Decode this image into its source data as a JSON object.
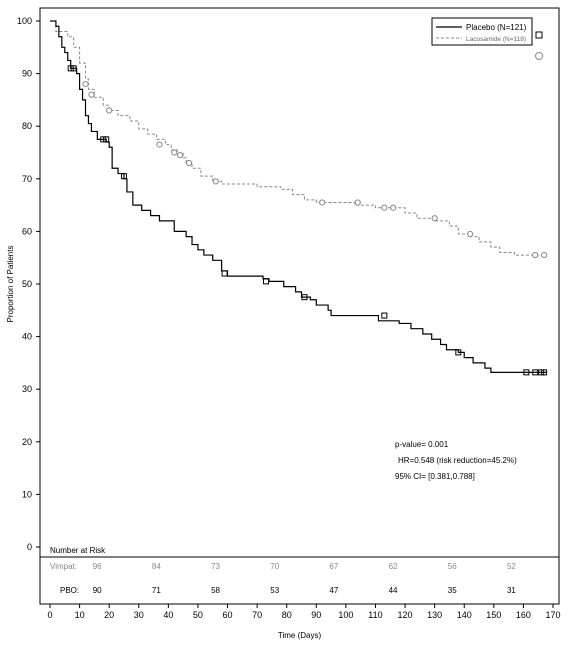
{
  "chart_data": {
    "type": "line",
    "title": "",
    "xlabel": "Time (Days)",
    "ylabel": "Proportion of Patients",
    "xlim": [
      0,
      170
    ],
    "ylim": [
      0,
      100
    ],
    "x_ticks": [
      0,
      10,
      20,
      30,
      40,
      50,
      60,
      70,
      80,
      90,
      100,
      110,
      120,
      130,
      140,
      150,
      160,
      170
    ],
    "y_ticks": [
      0,
      10,
      20,
      30,
      40,
      50,
      60,
      70,
      80,
      90,
      100
    ],
    "legend_position": "top-right",
    "series": [
      {
        "name": "Placebo (N=121)",
        "color": "#000000",
        "dashed": false,
        "censor_marker": "square",
        "steps": [
          [
            0,
            100
          ],
          [
            2,
            99
          ],
          [
            3,
            97
          ],
          [
            4,
            95
          ],
          [
            5,
            94
          ],
          [
            6,
            92.5
          ],
          [
            7,
            91
          ],
          [
            9,
            90
          ],
          [
            10,
            87
          ],
          [
            11,
            85
          ],
          [
            12,
            82
          ],
          [
            13,
            80.5
          ],
          [
            14,
            79
          ],
          [
            16,
            77.5
          ],
          [
            19,
            77
          ],
          [
            20,
            76
          ],
          [
            21,
            72
          ],
          [
            23,
            71
          ],
          [
            25,
            70
          ],
          [
            26,
            67.5
          ],
          [
            28,
            65
          ],
          [
            31,
            64
          ],
          [
            34,
            63
          ],
          [
            37,
            62
          ],
          [
            42,
            60
          ],
          [
            46,
            59
          ],
          [
            48,
            57.5
          ],
          [
            50,
            56.5
          ],
          [
            52,
            55.5
          ],
          [
            55,
            54.5
          ],
          [
            58,
            52.5
          ],
          [
            60,
            51.5
          ],
          [
            72,
            51
          ],
          [
            74,
            50.5
          ],
          [
            79,
            49.5
          ],
          [
            83,
            48.5
          ],
          [
            85,
            47.5
          ],
          [
            88,
            47
          ],
          [
            90,
            46
          ],
          [
            94,
            45
          ],
          [
            95,
            44
          ],
          [
            111,
            43
          ],
          [
            118,
            42.5
          ],
          [
            122,
            41.5
          ],
          [
            126,
            40.5
          ],
          [
            129,
            39.5
          ],
          [
            132,
            38.5
          ],
          [
            134,
            37.5
          ],
          [
            138,
            37
          ],
          [
            140,
            36
          ],
          [
            143,
            35
          ],
          [
            147,
            34
          ],
          [
            149,
            33.2
          ],
          [
            168,
            33.2
          ]
        ],
        "censored": [
          [
            7,
            91
          ],
          [
            8,
            91
          ],
          [
            18,
            77.5
          ],
          [
            19,
            77.5
          ],
          [
            25,
            70.5
          ],
          [
            59,
            52
          ],
          [
            73,
            50.5
          ],
          [
            86,
            47.5
          ],
          [
            113,
            44
          ],
          [
            138,
            37
          ],
          [
            161,
            33.2
          ],
          [
            164,
            33.2
          ],
          [
            166,
            33.2
          ],
          [
            167,
            33.2
          ]
        ]
      },
      {
        "name": "Lacosamide (N=118)",
        "color": "#888888",
        "dashed": true,
        "censor_marker": "circle",
        "steps": [
          [
            0,
            100
          ],
          [
            2,
            98
          ],
          [
            6,
            97
          ],
          [
            8,
            95
          ],
          [
            10,
            92
          ],
          [
            12,
            89
          ],
          [
            13,
            87
          ],
          [
            15,
            85.5
          ],
          [
            18,
            84
          ],
          [
            20,
            83
          ],
          [
            23,
            82
          ],
          [
            27,
            81
          ],
          [
            30,
            79.5
          ],
          [
            33,
            78.5
          ],
          [
            36,
            77.5
          ],
          [
            39,
            76.5
          ],
          [
            41,
            75.5
          ],
          [
            43,
            74.8
          ],
          [
            45,
            74
          ],
          [
            46,
            73
          ],
          [
            48,
            72
          ],
          [
            51,
            70.5
          ],
          [
            55,
            69.5
          ],
          [
            58,
            69
          ],
          [
            70,
            68.5
          ],
          [
            78,
            68
          ],
          [
            82,
            67
          ],
          [
            86,
            66
          ],
          [
            90,
            65.5
          ],
          [
            103,
            65
          ],
          [
            110,
            64.5
          ],
          [
            120,
            63.5
          ],
          [
            124,
            62.5
          ],
          [
            130,
            62
          ],
          [
            135,
            61
          ],
          [
            138,
            59.5
          ],
          [
            142,
            59
          ],
          [
            145,
            58
          ],
          [
            149,
            57
          ],
          [
            152,
            56
          ],
          [
            157,
            55.5
          ],
          [
            167,
            55.5
          ]
        ],
        "censored": [
          [
            12,
            88
          ],
          [
            14,
            86
          ],
          [
            20,
            83
          ],
          [
            37,
            76.5
          ],
          [
            42,
            75
          ],
          [
            44,
            74.5
          ],
          [
            47,
            73
          ],
          [
            56,
            69.5
          ],
          [
            92,
            65.5
          ],
          [
            104,
            65.5
          ],
          [
            113,
            64.5
          ],
          [
            116,
            64.5
          ],
          [
            130,
            62.5
          ],
          [
            142,
            59.5
          ],
          [
            164,
            55.5
          ],
          [
            167,
            55.5
          ]
        ]
      }
    ],
    "legend_extra_markers": [
      "square",
      "circle"
    ],
    "annotation": {
      "line1": "p-value= 0.001",
      "line2": "HR=0.548 (risk reduction=45.2%)",
      "line3": "95% CI= [0.381,0.788]"
    },
    "risk_table": {
      "header": "Number at Risk",
      "rows": [
        {
          "label": "Vimpat:",
          "color": "#888888",
          "values": [
            96,
            84,
            73,
            70,
            67,
            62,
            56,
            52
          ]
        },
        {
          "label": "PBO:",
          "color": "#000000",
          "values": [
            90,
            71,
            58,
            53,
            47,
            44,
            35,
            31
          ]
        }
      ],
      "x_positions": [
        20,
        40,
        60,
        80,
        100,
        120,
        140,
        160
      ]
    }
  }
}
